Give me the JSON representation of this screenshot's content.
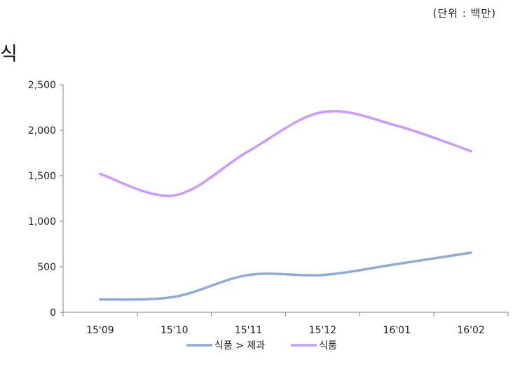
{
  "header": {
    "unit_label": "(단위 : 백만)",
    "title_fragment": "식"
  },
  "chart_data": {
    "type": "line",
    "categories": [
      "15'09",
      "15'10",
      "15'11",
      "15'12",
      "16'01",
      "16'02"
    ],
    "ylim": [
      0,
      2500
    ],
    "yticks": [
      0,
      500,
      1000,
      1500,
      2000,
      2500
    ],
    "ytick_labels": [
      "0",
      "500",
      "1,000",
      "1,500",
      "2,000",
      "2,500"
    ],
    "grid": false,
    "smooth": true,
    "legend_position": "bottom",
    "series": [
      {
        "name": "식품 > 제과",
        "color": "#8eaadb",
        "values": [
          140,
          170,
          410,
          410,
          530,
          655
        ]
      },
      {
        "name": "식품",
        "color": "#cc99ff",
        "values": [
          1520,
          1285,
          1770,
          2200,
          2050,
          1770
        ]
      }
    ]
  }
}
